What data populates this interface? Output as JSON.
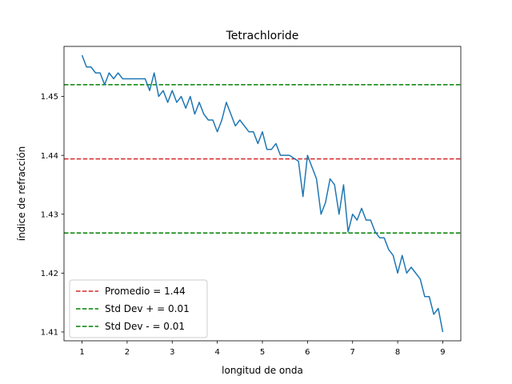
{
  "chart_data": {
    "type": "line",
    "title": "Tetrachloride",
    "xlabel": "longitud de onda",
    "ylabel": "índice de refracción",
    "xlim": [
      0.6,
      9.4
    ],
    "ylim": [
      1.4085,
      1.4585
    ],
    "xticks": [
      1,
      2,
      3,
      4,
      5,
      6,
      7,
      8,
      9
    ],
    "yticks": [
      1.41,
      1.42,
      1.43,
      1.44,
      1.45
    ],
    "ytick_labels": [
      "1.41",
      "1.42",
      "1.43",
      "1.44",
      "1.45"
    ],
    "legend_position": "lower-left",
    "grid": false,
    "series": [
      {
        "color": "#1f77b4",
        "x": [
          1.0,
          1.1,
          1.2,
          1.3,
          1.4,
          1.5,
          1.6,
          1.7,
          1.8,
          1.9,
          2.0,
          2.1,
          2.2,
          2.3,
          2.4,
          2.5,
          2.6,
          2.7,
          2.8,
          2.9,
          3.0,
          3.1,
          3.2,
          3.3,
          3.4,
          3.5,
          3.6,
          3.7,
          3.8,
          3.9,
          4.0,
          4.1,
          4.2,
          4.3,
          4.4,
          4.5,
          4.6,
          4.7,
          4.8,
          4.9,
          5.0,
          5.1,
          5.2,
          5.3,
          5.4,
          5.5,
          5.6,
          5.7,
          5.8,
          5.9,
          6.0,
          6.1,
          6.2,
          6.3,
          6.4,
          6.5,
          6.6,
          6.7,
          6.8,
          6.9,
          7.0,
          7.1,
          7.2,
          7.3,
          7.4,
          7.5,
          7.6,
          7.7,
          7.8,
          7.9,
          8.0,
          8.1,
          8.2,
          8.3,
          8.4,
          8.5,
          8.6,
          8.7,
          8.8,
          8.9,
          9.0
        ],
        "y": [
          1.457,
          1.455,
          1.455,
          1.454,
          1.454,
          1.452,
          1.454,
          1.453,
          1.454,
          1.453,
          1.453,
          1.453,
          1.453,
          1.453,
          1.453,
          1.451,
          1.454,
          1.45,
          1.451,
          1.449,
          1.451,
          1.449,
          1.45,
          1.448,
          1.45,
          1.447,
          1.449,
          1.447,
          1.446,
          1.446,
          1.444,
          1.446,
          1.449,
          1.447,
          1.445,
          1.446,
          1.445,
          1.444,
          1.444,
          1.442,
          1.444,
          1.441,
          1.441,
          1.442,
          1.44,
          1.44,
          1.44,
          1.4395,
          1.439,
          1.433,
          1.44,
          1.438,
          1.436,
          1.43,
          1.432,
          1.436,
          1.435,
          1.43,
          1.435,
          1.427,
          1.43,
          1.429,
          1.431,
          1.429,
          1.429,
          1.427,
          1.426,
          1.426,
          1.424,
          1.423,
          1.42,
          1.423,
          1.42,
          1.421,
          1.42,
          1.419,
          1.416,
          1.416,
          1.413,
          1.414,
          1.41
        ]
      }
    ],
    "hlines": [
      {
        "label": "Promedio = 1.44",
        "y": 1.4394,
        "color": "#d62728"
      },
      {
        "label": "Std Dev + = 0.01",
        "y": 1.452,
        "color": "#008000"
      },
      {
        "label": "Std Dev - = 0.01",
        "y": 1.4268,
        "color": "#008000"
      }
    ]
  }
}
